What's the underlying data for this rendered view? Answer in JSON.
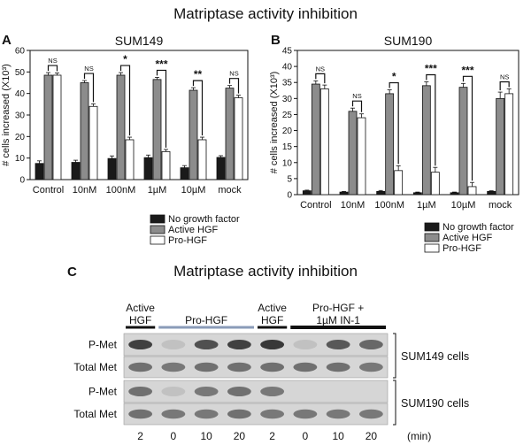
{
  "figure": {
    "title_top": "Matriptase activity inhibition",
    "title_bottom": "Matriptase activity inhibition",
    "colors": {
      "no_gf": "#1a1a1a",
      "active": "#8c8c8c",
      "pro": "#ffffff",
      "axis": "#111111"
    }
  },
  "chart_data": [
    {
      "panel": "A",
      "type": "bar",
      "title": "SUM149",
      "ylabel": "# cells increased (X10³)",
      "ylim": [
        0,
        60
      ],
      "yticks": [
        0,
        10,
        20,
        30,
        40,
        50,
        60
      ],
      "categories": [
        "Control",
        "10nM",
        "100nM",
        "1µM",
        "10µM",
        "mock"
      ],
      "series": [
        {
          "name": "No growth factor",
          "values": [
            7.5,
            8,
            9.8,
            10.2,
            5.5,
            10.3
          ],
          "errors": [
            1.2,
            1.0,
            1.2,
            1.2,
            1.0,
            0.8
          ]
        },
        {
          "name": "Active HGF",
          "values": [
            48.5,
            45,
            48.5,
            46.5,
            41.5,
            42.5
          ],
          "errors": [
            1.2,
            1.0,
            1.2,
            1.0,
            1.2,
            1.2
          ]
        },
        {
          "name": "Pro-HGF",
          "values": [
            48.5,
            34,
            18.5,
            13,
            18.5,
            38
          ],
          "errors": [
            1.0,
            1.2,
            1.2,
            1.0,
            1.2,
            1.2
          ]
        }
      ],
      "significance": [
        "NS",
        "NS",
        "*",
        "***",
        "**",
        "NS"
      ],
      "legend": [
        "No growth factor",
        "Active HGF",
        "Pro-HGF"
      ]
    },
    {
      "panel": "B",
      "type": "bar",
      "title": "SUM190",
      "ylabel": "# cells increased (X10³)",
      "ylim": [
        0,
        45
      ],
      "yticks": [
        0,
        5,
        10,
        15,
        20,
        25,
        30,
        35,
        40,
        45
      ],
      "categories": [
        "Control",
        "10nM",
        "100nM",
        "1µM",
        "10µM",
        "mock"
      ],
      "series": [
        {
          "name": "No growth factor",
          "values": [
            1.2,
            0.8,
            1.0,
            0.6,
            0.6,
            1.0
          ],
          "errors": [
            0.2,
            0.2,
            0.3,
            0.2,
            0.2,
            0.2
          ]
        },
        {
          "name": "Active HGF",
          "values": [
            34.5,
            26,
            31.5,
            34,
            33.5,
            30
          ],
          "errors": [
            1.0,
            1.0,
            1.2,
            1.2,
            1.2,
            2.0
          ]
        },
        {
          "name": "Pro-HGF",
          "values": [
            33,
            24,
            7.5,
            7,
            2.5,
            31.5
          ],
          "errors": [
            1.2,
            1.2,
            1.5,
            1.5,
            1.3,
            1.5
          ]
        }
      ],
      "significance": [
        "NS",
        "NS",
        "*",
        "***",
        "***",
        "NS"
      ],
      "legend": [
        "No growth factor",
        "Active HGF",
        "Pro-HGF"
      ]
    }
  ],
  "panel_labels": {
    "a": "A",
    "b": "B",
    "c": "C"
  },
  "western": {
    "headers": [
      {
        "lines": [
          "Active",
          "HGF"
        ]
      },
      {
        "lines": [
          "Pro-HGF"
        ]
      },
      {
        "lines": [
          "Active",
          "HGF"
        ]
      },
      {
        "lines": [
          "Pro-HGF +",
          "1µM IN-1"
        ]
      }
    ],
    "row_labels": [
      "P-Met",
      "Total Met",
      "P-Met",
      "Total Met"
    ],
    "cell_lines": [
      "SUM149  cells",
      "SUM190  cells"
    ],
    "time_points": [
      "2",
      "0",
      "10",
      "20",
      "2",
      "0",
      "10",
      "20"
    ],
    "time_unit": "(min)",
    "band_intensity": [
      [
        0.85,
        0.05,
        0.75,
        0.85,
        0.9,
        0.05,
        0.7,
        0.6
      ],
      [
        0.55,
        0.5,
        0.55,
        0.55,
        0.55,
        0.55,
        0.55,
        0.5
      ],
      [
        0.55,
        0.05,
        0.5,
        0.55,
        0.5,
        0.0,
        0.0,
        0.0
      ],
      [
        0.55,
        0.5,
        0.5,
        0.55,
        0.5,
        0.5,
        0.5,
        0.5
      ]
    ]
  }
}
